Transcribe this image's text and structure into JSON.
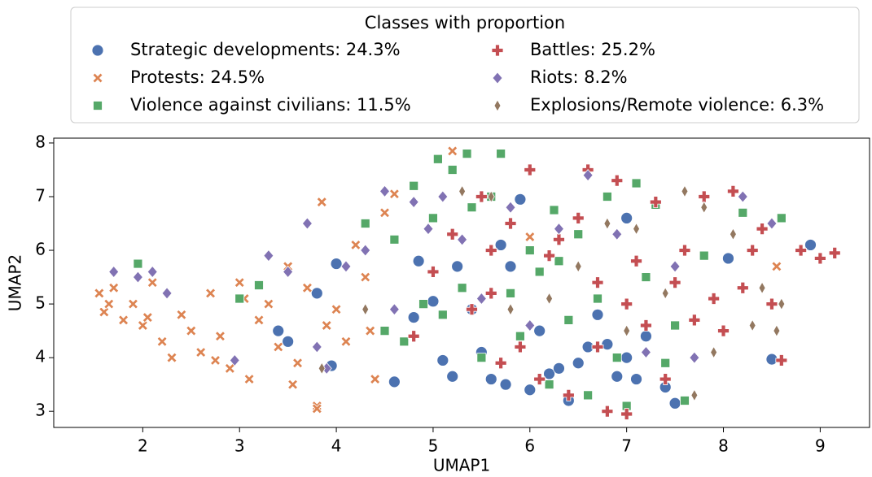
{
  "chart_data": {
    "type": "scatter",
    "legend_title": "Classes with proportion",
    "xlabel": "UMAP1",
    "ylabel": "UMAP2",
    "xlim": [
      1.08,
      9.51
    ],
    "ylim": [
      2.7,
      8.09
    ],
    "xticks": [
      2,
      3,
      4,
      5,
      6,
      7,
      8,
      9
    ],
    "yticks": [
      3,
      4,
      5,
      6,
      7,
      8
    ],
    "legend_position": "top",
    "series": [
      {
        "name": "Strategic developments: 24.3%",
        "color": "#4c72b0",
        "marker": "circle",
        "x": [
          3.4,
          3.5,
          3.8,
          3.95,
          4.0,
          4.6,
          4.8,
          4.85,
          5.0,
          5.1,
          5.2,
          5.4,
          5.5,
          5.6,
          5.7,
          5.75,
          5.8,
          5.9,
          6.0,
          6.1,
          6.2,
          6.3,
          6.4,
          6.5,
          6.6,
          6.7,
          6.8,
          6.9,
          7.0,
          7.1,
          7.2,
          7.4,
          7.5,
          7.0,
          8.05,
          8.5,
          8.9,
          5.25
        ],
        "values": [
          4.5,
          4.3,
          5.2,
          3.85,
          5.75,
          3.55,
          4.75,
          5.8,
          5.05,
          3.95,
          3.65,
          4.9,
          4.1,
          3.6,
          6.1,
          3.5,
          5.7,
          6.95,
          3.4,
          4.5,
          3.7,
          3.8,
          3.2,
          3.9,
          4.2,
          4.8,
          4.25,
          3.65,
          4.0,
          3.6,
          4.4,
          3.45,
          3.15,
          6.6,
          5.85,
          3.97,
          6.1,
          5.7
        ]
      },
      {
        "name": "Protests: 24.5%",
        "color": "#dd8452",
        "marker": "x",
        "x": [
          1.55,
          1.6,
          1.7,
          1.8,
          1.9,
          2.0,
          2.1,
          2.2,
          2.3,
          2.4,
          2.5,
          2.6,
          2.7,
          2.8,
          2.9,
          3.0,
          3.1,
          3.2,
          3.3,
          3.4,
          3.5,
          3.6,
          3.7,
          3.8,
          3.85,
          3.9,
          4.0,
          4.1,
          4.2,
          4.3,
          4.4,
          4.5,
          4.6,
          1.65,
          2.05,
          2.75,
          3.05,
          3.55,
          3.8,
          4.35,
          5.2,
          6.0,
          8.55
        ],
        "values": [
          5.2,
          4.85,
          5.3,
          4.7,
          5.0,
          4.6,
          5.4,
          4.3,
          4.0,
          4.8,
          4.5,
          4.1,
          5.2,
          4.4,
          3.8,
          5.4,
          3.6,
          4.7,
          5.0,
          4.2,
          5.7,
          3.9,
          5.3,
          3.1,
          6.9,
          4.6,
          4.9,
          4.3,
          6.1,
          5.5,
          3.6,
          6.7,
          7.05,
          5.0,
          4.75,
          3.95,
          5.1,
          3.5,
          3.05,
          4.5,
          7.85,
          6.25,
          5.7
        ]
      },
      {
        "name": "Violence against civilians: 11.5%",
        "color": "#55a868",
        "marker": "square",
        "x": [
          1.95,
          3.0,
          3.2,
          4.3,
          4.5,
          4.6,
          4.7,
          4.8,
          4.9,
          5.0,
          5.05,
          5.1,
          5.2,
          5.3,
          5.4,
          5.5,
          5.6,
          5.7,
          5.8,
          5.9,
          6.0,
          6.1,
          6.2,
          6.3,
          6.4,
          6.5,
          6.6,
          6.7,
          6.8,
          6.9,
          7.0,
          7.1,
          7.2,
          7.3,
          7.4,
          7.5,
          7.6,
          7.8,
          8.2,
          8.6,
          5.35,
          6.25
        ],
        "values": [
          5.75,
          5.1,
          5.35,
          6.5,
          4.5,
          6.2,
          4.3,
          7.2,
          5.0,
          6.6,
          7.7,
          4.8,
          7.5,
          5.3,
          6.8,
          4.0,
          7.0,
          7.8,
          5.2,
          4.4,
          6.0,
          5.6,
          3.5,
          5.8,
          4.7,
          6.3,
          3.3,
          5.1,
          7.0,
          4.0,
          3.1,
          7.25,
          5.5,
          6.85,
          3.9,
          4.6,
          3.2,
          5.9,
          6.7,
          6.6,
          7.8,
          6.75
        ]
      },
      {
        "name": "Battles: 25.2%",
        "color": "#c44e52",
        "marker": "plus",
        "x": [
          4.8,
          5.0,
          5.2,
          5.4,
          5.5,
          5.6,
          5.7,
          5.8,
          5.9,
          6.0,
          6.1,
          6.2,
          6.3,
          6.4,
          6.5,
          6.6,
          6.7,
          6.8,
          6.9,
          7.0,
          7.1,
          7.2,
          7.3,
          7.4,
          7.5,
          7.6,
          7.7,
          7.8,
          7.9,
          8.0,
          8.1,
          8.2,
          8.3,
          8.4,
          8.5,
          8.6,
          8.8,
          9.0,
          9.15,
          6.7,
          7.0,
          5.6
        ],
        "values": [
          4.4,
          5.6,
          6.3,
          4.9,
          7.0,
          5.2,
          3.9,
          6.5,
          4.2,
          7.5,
          3.6,
          5.9,
          6.2,
          3.3,
          6.6,
          7.5,
          5.4,
          3.0,
          7.3,
          2.95,
          5.8,
          4.6,
          6.9,
          3.6,
          5.4,
          6.0,
          4.7,
          7.0,
          5.1,
          4.5,
          7.1,
          5.3,
          6.0,
          6.4,
          5.0,
          3.95,
          6.0,
          5.85,
          5.95,
          4.2,
          5.0,
          6.0
        ]
      },
      {
        "name": "Riots: 8.2%",
        "color": "#8172b3",
        "marker": "diamond",
        "x": [
          1.7,
          1.95,
          2.1,
          2.25,
          2.95,
          3.3,
          3.5,
          3.7,
          3.8,
          3.9,
          4.1,
          4.3,
          4.5,
          4.6,
          4.8,
          4.95,
          5.1,
          5.3,
          5.5,
          5.8,
          6.0,
          6.3,
          6.6,
          6.9,
          7.2,
          7.5,
          7.7,
          8.2,
          8.5
        ],
        "values": [
          5.6,
          5.5,
          5.6,
          5.2,
          3.95,
          5.9,
          5.6,
          6.5,
          4.2,
          3.8,
          5.7,
          6.0,
          7.1,
          4.9,
          6.9,
          6.4,
          7.0,
          6.2,
          5.1,
          6.8,
          4.6,
          6.4,
          7.4,
          6.3,
          4.1,
          5.7,
          4.0,
          7.0,
          6.5
        ]
      },
      {
        "name": "Explosions/Remote violence: 6.3%",
        "color": "#937860",
        "marker": "thin_diamond",
        "x": [
          3.85,
          4.3,
          5.3,
          5.6,
          5.8,
          6.2,
          6.5,
          6.8,
          7.1,
          7.4,
          7.6,
          7.8,
          7.9,
          8.1,
          8.3,
          8.4,
          8.55,
          8.6,
          7.0,
          7.7
        ],
        "values": [
          3.8,
          4.9,
          7.1,
          7.0,
          4.9,
          5.1,
          5.7,
          6.5,
          6.4,
          5.2,
          7.1,
          6.8,
          4.1,
          6.3,
          4.6,
          5.3,
          4.5,
          5.0,
          4.5,
          3.3
        ]
      }
    ]
  }
}
